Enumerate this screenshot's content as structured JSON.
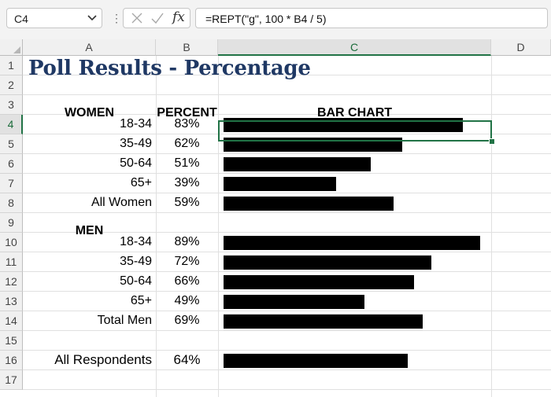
{
  "formula_bar": {
    "name_box": "C4",
    "separator": "⋮",
    "fx_label": "fx",
    "formula": "=REPT(\"g\", 100 * B4 / 5)"
  },
  "columns": [
    "A",
    "B",
    "C",
    "D"
  ],
  "rows": [
    "1",
    "2",
    "3",
    "4",
    "5",
    "6",
    "7",
    "8",
    "9",
    "10",
    "11",
    "12",
    "13",
    "14",
    "15",
    "16",
    "17"
  ],
  "selection": {
    "cell": "C4",
    "column": "C",
    "row": "4"
  },
  "sheet": {
    "title": "Poll Results - Percentage",
    "header_women": "WOMEN",
    "header_percent": "PERCENT",
    "header_bar_chart": "BAR CHART",
    "header_men": "MEN",
    "women": [
      {
        "label": "18-34",
        "percent": "83%",
        "value": 83
      },
      {
        "label": "35-49",
        "percent": "62%",
        "value": 62
      },
      {
        "label": "50-64",
        "percent": "51%",
        "value": 51
      },
      {
        "label": "65+",
        "percent": "39%",
        "value": 39
      },
      {
        "label": "All Women",
        "percent": "59%",
        "value": 59
      }
    ],
    "men": [
      {
        "label": "18-34",
        "percent": "89%",
        "value": 89
      },
      {
        "label": "35-49",
        "percent": "72%",
        "value": 72
      },
      {
        "label": "50-64",
        "percent": "66%",
        "value": 66
      },
      {
        "label": "65+",
        "percent": "49%",
        "value": 49
      },
      {
        "label": "Total Men",
        "percent": "69%",
        "value": 69
      }
    ],
    "all": {
      "label": "All Respondents",
      "percent": "64%",
      "value": 64
    }
  },
  "colors": {
    "title": "#1f3864",
    "selection": "#217346",
    "bar": "#000000"
  }
}
